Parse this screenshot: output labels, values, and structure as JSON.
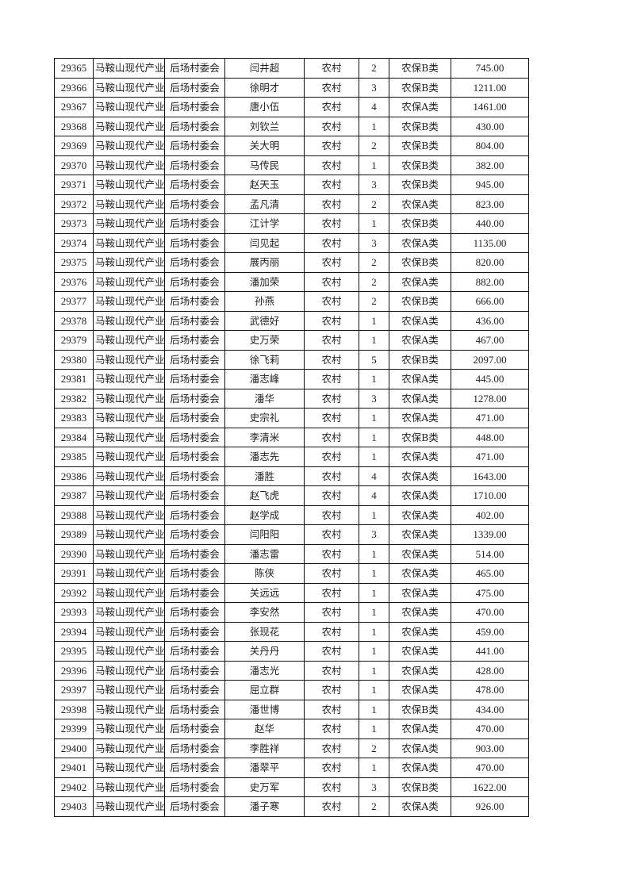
{
  "rows": [
    [
      "29365",
      "马鞍山现代产业",
      "后场村委会",
      "闫井超",
      "农村",
      "2",
      "农保B类",
      "745.00"
    ],
    [
      "29366",
      "马鞍山现代产业",
      "后场村委会",
      "徐明才",
      "农村",
      "3",
      "农保B类",
      "1211.00"
    ],
    [
      "29367",
      "马鞍山现代产业",
      "后场村委会",
      "唐小伍",
      "农村",
      "4",
      "农保A类",
      "1461.00"
    ],
    [
      "29368",
      "马鞍山现代产业",
      "后场村委会",
      "刘钦兰",
      "农村",
      "1",
      "农保B类",
      "430.00"
    ],
    [
      "29369",
      "马鞍山现代产业",
      "后场村委会",
      "关大明",
      "农村",
      "2",
      "农保B类",
      "804.00"
    ],
    [
      "29370",
      "马鞍山现代产业",
      "后场村委会",
      "马传民",
      "农村",
      "1",
      "农保B类",
      "382.00"
    ],
    [
      "29371",
      "马鞍山现代产业",
      "后场村委会",
      "赵天玉",
      "农村",
      "3",
      "农保B类",
      "945.00"
    ],
    [
      "29372",
      "马鞍山现代产业",
      "后场村委会",
      "孟凡清",
      "农村",
      "2",
      "农保A类",
      "823.00"
    ],
    [
      "29373",
      "马鞍山现代产业",
      "后场村委会",
      "江计学",
      "农村",
      "1",
      "农保B类",
      "440.00"
    ],
    [
      "29374",
      "马鞍山现代产业",
      "后场村委会",
      "闫见起",
      "农村",
      "3",
      "农保A类",
      "1135.00"
    ],
    [
      "29375",
      "马鞍山现代产业",
      "后场村委会",
      "展丙丽",
      "农村",
      "2",
      "农保B类",
      "820.00"
    ],
    [
      "29376",
      "马鞍山现代产业",
      "后场村委会",
      "潘加荣",
      "农村",
      "2",
      "农保A类",
      "882.00"
    ],
    [
      "29377",
      "马鞍山现代产业",
      "后场村委会",
      "孙燕",
      "农村",
      "2",
      "农保B类",
      "666.00"
    ],
    [
      "29378",
      "马鞍山现代产业",
      "后场村委会",
      "武德好",
      "农村",
      "1",
      "农保A类",
      "436.00"
    ],
    [
      "29379",
      "马鞍山现代产业",
      "后场村委会",
      "史万荣",
      "农村",
      "1",
      "农保A类",
      "467.00"
    ],
    [
      "29380",
      "马鞍山现代产业",
      "后场村委会",
      "徐飞莉",
      "农村",
      "5",
      "农保B类",
      "2097.00"
    ],
    [
      "29381",
      "马鞍山现代产业",
      "后场村委会",
      "潘志峰",
      "农村",
      "1",
      "农保A类",
      "445.00"
    ],
    [
      "29382",
      "马鞍山现代产业",
      "后场村委会",
      "潘华",
      "农村",
      "3",
      "农保A类",
      "1278.00"
    ],
    [
      "29383",
      "马鞍山现代产业",
      "后场村委会",
      "史宗礼",
      "农村",
      "1",
      "农保A类",
      "471.00"
    ],
    [
      "29384",
      "马鞍山现代产业",
      "后场村委会",
      "李清米",
      "农村",
      "1",
      "农保B类",
      "448.00"
    ],
    [
      "29385",
      "马鞍山现代产业",
      "后场村委会",
      "潘志先",
      "农村",
      "1",
      "农保A类",
      "471.00"
    ],
    [
      "29386",
      "马鞍山现代产业",
      "后场村委会",
      "潘胜",
      "农村",
      "4",
      "农保A类",
      "1643.00"
    ],
    [
      "29387",
      "马鞍山现代产业",
      "后场村委会",
      "赵飞虎",
      "农村",
      "4",
      "农保A类",
      "1710.00"
    ],
    [
      "29388",
      "马鞍山现代产业",
      "后场村委会",
      "赵学成",
      "农村",
      "1",
      "农保A类",
      "402.00"
    ],
    [
      "29389",
      "马鞍山现代产业",
      "后场村委会",
      "闫阳阳",
      "农村",
      "3",
      "农保A类",
      "1339.00"
    ],
    [
      "29390",
      "马鞍山现代产业",
      "后场村委会",
      "潘志雷",
      "农村",
      "1",
      "农保A类",
      "514.00"
    ],
    [
      "29391",
      "马鞍山现代产业",
      "后场村委会",
      "陈侠",
      "农村",
      "1",
      "农保A类",
      "465.00"
    ],
    [
      "29392",
      "马鞍山现代产业",
      "后场村委会",
      "关远远",
      "农村",
      "1",
      "农保A类",
      "475.00"
    ],
    [
      "29393",
      "马鞍山现代产业",
      "后场村委会",
      "李安然",
      "农村",
      "1",
      "农保A类",
      "470.00"
    ],
    [
      "29394",
      "马鞍山现代产业",
      "后场村委会",
      "张现花",
      "农村",
      "1",
      "农保A类",
      "459.00"
    ],
    [
      "29395",
      "马鞍山现代产业",
      "后场村委会",
      "关丹丹",
      "农村",
      "1",
      "农保A类",
      "441.00"
    ],
    [
      "29396",
      "马鞍山现代产业",
      "后场村委会",
      "潘志光",
      "农村",
      "1",
      "农保A类",
      "428.00"
    ],
    [
      "29397",
      "马鞍山现代产业",
      "后场村委会",
      "屈立群",
      "农村",
      "1",
      "农保A类",
      "478.00"
    ],
    [
      "29398",
      "马鞍山现代产业",
      "后场村委会",
      "潘世博",
      "农村",
      "1",
      "农保B类",
      "434.00"
    ],
    [
      "29399",
      "马鞍山现代产业",
      "后场村委会",
      "赵华",
      "农村",
      "1",
      "农保A类",
      "470.00"
    ],
    [
      "29400",
      "马鞍山现代产业",
      "后场村委会",
      "李胜祥",
      "农村",
      "2",
      "农保A类",
      "903.00"
    ],
    [
      "29401",
      "马鞍山现代产业",
      "后场村委会",
      "潘翠平",
      "农村",
      "1",
      "农保A类",
      "470.00"
    ],
    [
      "29402",
      "马鞍山现代产业",
      "后场村委会",
      "史万军",
      "农村",
      "3",
      "农保B类",
      "1622.00"
    ],
    [
      "29403",
      "马鞍山现代产业",
      "后场村委会",
      "潘子寒",
      "农村",
      "2",
      "农保A类",
      "926.00"
    ]
  ]
}
